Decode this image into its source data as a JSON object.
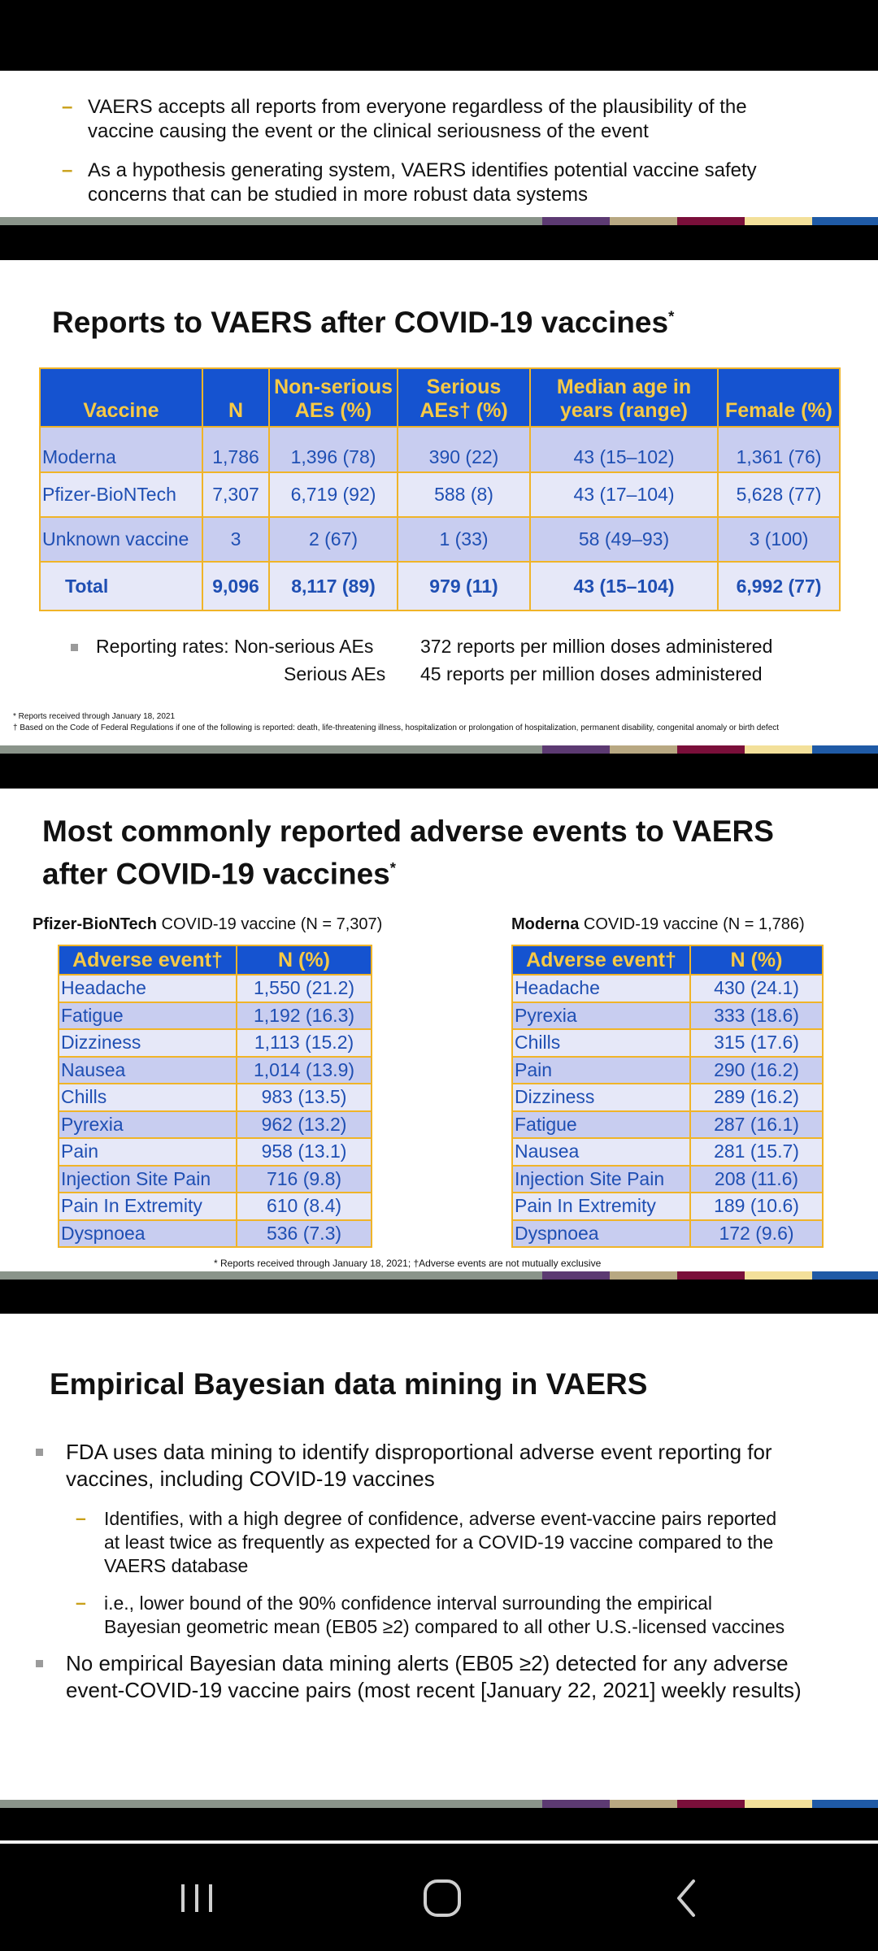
{
  "slide1": {
    "bullets": [
      [
        "VAERS accepts all reports from everyone regardless of the plausibility of the",
        "vaccine causing the event or the clinical seriousness of the event"
      ],
      [
        "As a hypothesis generating system, VAERS identifies potential vaccine safety",
        "concerns that can be studied in more robust data systems"
      ]
    ],
    "dash": "–"
  },
  "slide2": {
    "title": "Reports to VAERS after COVID-19 vaccines",
    "title_sup": "*",
    "headers": [
      "Vaccine",
      "N",
      "Non-serious AEs (%)",
      "Serious AEs† (%)",
      "Median age in years (range)",
      "Female (%)"
    ],
    "header_lines": [
      [
        "Vaccine"
      ],
      [
        "N"
      ],
      [
        "Non-serious",
        "AEs (%)"
      ],
      [
        "Serious",
        "AEs† (%)"
      ],
      [
        "Median age in",
        "years (range)"
      ],
      [
        "Female (%)"
      ]
    ],
    "rows": [
      [
        "Moderna",
        "1,786",
        "1,396 (78)",
        "390 (22)",
        "43 (15–102)",
        "1,361 (76)"
      ],
      [
        "Pfizer-BioNTech",
        "7,307",
        "6,719 (92)",
        "588 (8)",
        "43 (17–104)",
        "5,628 (77)"
      ],
      [
        "Unknown vaccine",
        "3",
        "2 (67)",
        "1 (33)",
        "58 (49–93)",
        "3 (100)"
      ],
      [
        "Total",
        "9,096",
        "8,117 (89)",
        "979 (11)",
        "43 (15–104)",
        "6,992 (77)"
      ]
    ],
    "rates_label": "Reporting rates: Non-serious AEs",
    "rates_value1": "372 reports per million doses administered",
    "rates_label2": "Serious AEs",
    "rates_value2": "45 reports per million doses administered",
    "footnote1": "* Reports received through January 18, 2021",
    "footnote2": "† Based on the Code of Federal Regulations if one of the following is reported: death, life-threatening illness, hospitalization or prolongation of hospitalization, permanent disability, congenital anomaly or birth defect"
  },
  "slide3": {
    "title_line1": "Most commonly reported adverse events to VAERS",
    "title_line2": "after COVID-19 vaccines",
    "title_sup": "*",
    "pfizer_caption_bold": "Pfizer-BioNTech",
    "pfizer_caption_rest": " COVID-19 vaccine (N = 7,307)",
    "moderna_caption_bold": "Moderna",
    "moderna_caption_rest": " COVID-19 vaccine (N = 1,786)",
    "col_event": "Adverse event†",
    "col_n": "N (%)",
    "pfizer_rows": [
      [
        "Headache",
        "1,550 (21.2)"
      ],
      [
        "Fatigue",
        "1,192 (16.3)"
      ],
      [
        "Dizziness",
        "1,113 (15.2)"
      ],
      [
        "Nausea",
        "1,014 (13.9)"
      ],
      [
        "Chills",
        "983 (13.5)"
      ],
      [
        "Pyrexia",
        "962 (13.2)"
      ],
      [
        "Pain",
        "958 (13.1)"
      ],
      [
        "Injection Site Pain",
        "716 (9.8)"
      ],
      [
        "Pain In Extremity",
        "610 (8.4)"
      ],
      [
        "Dyspnoea",
        "536 (7.3)"
      ]
    ],
    "moderna_rows": [
      [
        "Headache",
        "430 (24.1)"
      ],
      [
        "Pyrexia",
        "333 (18.6)"
      ],
      [
        "Chills",
        "315 (17.6)"
      ],
      [
        "Pain",
        "290 (16.2)"
      ],
      [
        "Dizziness",
        "289 (16.2)"
      ],
      [
        "Fatigue",
        "287 (16.1)"
      ],
      [
        "Nausea",
        "281 (15.7)"
      ],
      [
        "Injection Site Pain",
        "208 (11.6)"
      ],
      [
        "Pain In Extremity",
        "189 (10.6)"
      ],
      [
        "Dyspnoea",
        "172 (9.6)"
      ]
    ],
    "footnote": "* Reports received through January 18, 2021; †Adverse events are not mutually exclusive"
  },
  "slide4": {
    "title": "Empirical Bayesian data mining in VAERS",
    "b1": [
      "FDA uses data mining to identify disproportional adverse event reporting for",
      "vaccines, including COVID-19 vaccines"
    ],
    "d1": [
      "Identifies, with a high degree of confidence, adverse event-vaccine pairs reported",
      "at least twice as frequently as expected for a COVID-19 vaccine compared to the",
      "VAERS database"
    ],
    "d2": [
      "i.e., lower bound of the 90% confidence interval surrounding the empirical",
      "Bayesian geometric mean (EB05 ≥2) compared to all other U.S.-licensed vaccines"
    ],
    "b2": [
      "No empirical Bayesian data mining alerts (EB05 ≥2) detected for any adverse",
      "event-COVID-19 vaccine pairs (most recent [January 22, 2021] weekly results)"
    ]
  },
  "navbar": {
    "recents": "recents-icon",
    "home": "home-icon",
    "back": "back-icon"
  }
}
